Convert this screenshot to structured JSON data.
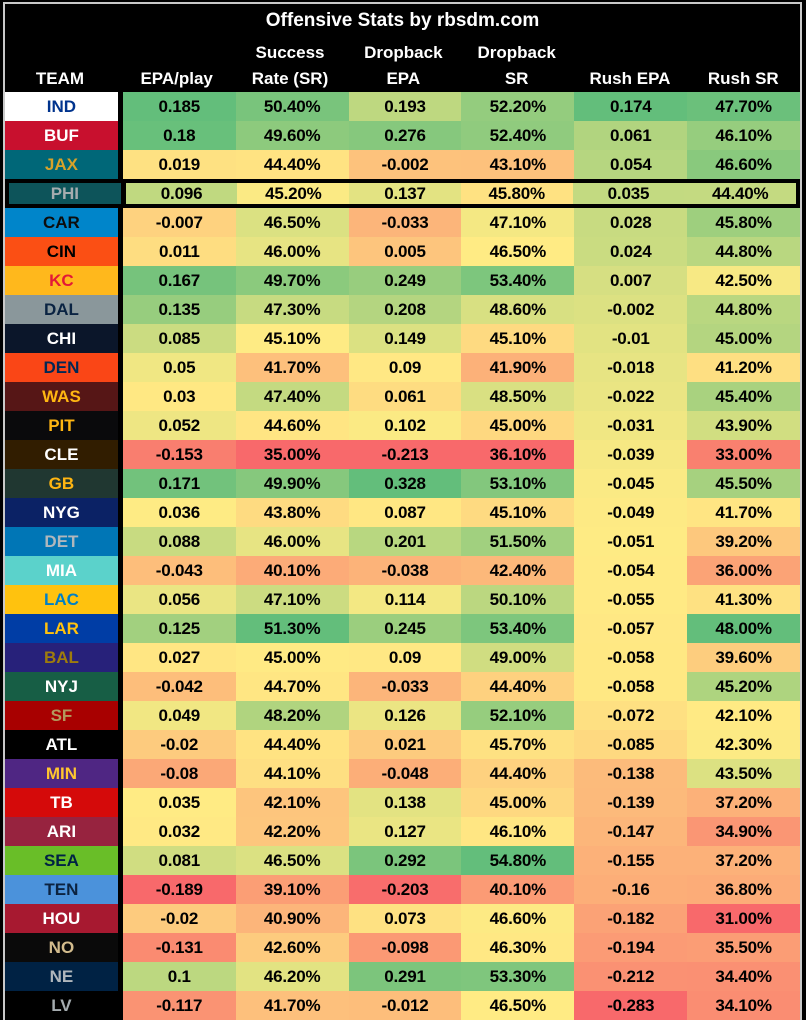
{
  "chart_data": {
    "type": "table",
    "title": "Offensive Stats by rbsdm.com",
    "source": "rbsdm.com",
    "highlighted_team": "PHI",
    "color_scale": {
      "style": "red-yellow-green heatmap per column",
      "min_color": "#F8696B",
      "mid_color": "#FFEB84",
      "max_color": "#63BE7B",
      "midpoint": "column median"
    },
    "columns": [
      {
        "id": "team",
        "label_lines": [
          "",
          "TEAM"
        ]
      },
      {
        "id": "epa-play",
        "label_lines": [
          "",
          "EPA/play"
        ]
      },
      {
        "id": "success-rate",
        "label_lines": [
          "Success",
          "Rate (SR)"
        ]
      },
      {
        "id": "dropback-epa",
        "label_lines": [
          "Dropback",
          "EPA"
        ]
      },
      {
        "id": "dropback-sr",
        "label_lines": [
          "Dropback",
          "SR"
        ]
      },
      {
        "id": "rush-epa",
        "label_lines": [
          "",
          "Rush EPA"
        ]
      },
      {
        "id": "rush-sr",
        "label_lines": [
          "",
          "Rush SR"
        ]
      }
    ],
    "rows": [
      {
        "team": "IND",
        "colors": {
          "bg": "#FFFFFF",
          "text": "#00338D"
        },
        "stats": [
          "0.185",
          "50.40%",
          "0.193",
          "52.20%",
          "0.174",
          "47.70%"
        ]
      },
      {
        "team": "BUF",
        "colors": {
          "bg": "#C8102E",
          "text": "#FFFFFF"
        },
        "stats": [
          "0.18",
          "49.60%",
          "0.276",
          "52.40%",
          "0.061",
          "46.10%"
        ]
      },
      {
        "team": "JAX",
        "colors": {
          "bg": "#006778",
          "text": "#D7A22A"
        },
        "stats": [
          "0.019",
          "44.40%",
          "-0.002",
          "43.10%",
          "0.054",
          "46.60%"
        ]
      },
      {
        "team": "PHI",
        "colors": {
          "bg": "#0D545A",
          "text": "#A5ACAF"
        },
        "stats": [
          "0.096",
          "45.20%",
          "0.137",
          "45.80%",
          "0.035",
          "44.40%"
        ]
      },
      {
        "team": "CAR",
        "colors": {
          "bg": "#0085CA",
          "text": "#0D0D0D"
        },
        "stats": [
          "-0.007",
          "46.50%",
          "-0.033",
          "47.10%",
          "0.028",
          "45.80%"
        ]
      },
      {
        "team": "CIN",
        "colors": {
          "bg": "#FB4F14",
          "text": "#000000"
        },
        "stats": [
          "0.011",
          "46.00%",
          "0.005",
          "46.50%",
          "0.024",
          "44.80%"
        ]
      },
      {
        "team": "KC",
        "colors": {
          "bg": "#FFB81C",
          "text": "#E31837"
        },
        "stats": [
          "0.167",
          "49.70%",
          "0.249",
          "53.40%",
          "0.007",
          "42.50%"
        ]
      },
      {
        "team": "DAL",
        "colors": {
          "bg": "#8A979B",
          "text": "#0A2342"
        },
        "stats": [
          "0.135",
          "47.30%",
          "0.208",
          "48.60%",
          "-0.002",
          "44.80%"
        ]
      },
      {
        "team": "CHI",
        "colors": {
          "bg": "#0B162A",
          "text": "#FFFFFF"
        },
        "stats": [
          "0.085",
          "45.10%",
          "0.149",
          "45.10%",
          "-0.01",
          "45.00%"
        ]
      },
      {
        "team": "DEN",
        "colors": {
          "bg": "#FA4616",
          "text": "#002855"
        },
        "stats": [
          "0.05",
          "41.70%",
          "0.09",
          "41.90%",
          "-0.018",
          "41.20%"
        ]
      },
      {
        "team": "WAS",
        "colors": {
          "bg": "#561616",
          "text": "#FFB612"
        },
        "stats": [
          "0.03",
          "47.40%",
          "0.061",
          "48.50%",
          "-0.022",
          "45.40%"
        ]
      },
      {
        "team": "PIT",
        "colors": {
          "bg": "#0A0A0C",
          "text": "#FFB612"
        },
        "stats": [
          "0.052",
          "44.60%",
          "0.102",
          "45.00%",
          "-0.031",
          "43.90%"
        ]
      },
      {
        "team": "CLE",
        "colors": {
          "bg": "#311D00",
          "text": "#FFFFFF"
        },
        "stats": [
          "-0.153",
          "35.00%",
          "-0.213",
          "36.10%",
          "-0.039",
          "33.00%"
        ]
      },
      {
        "team": "GB",
        "colors": {
          "bg": "#203731",
          "text": "#FFB612"
        },
        "stats": [
          "0.171",
          "49.90%",
          "0.328",
          "53.10%",
          "-0.045",
          "45.50%"
        ]
      },
      {
        "team": "NYG",
        "colors": {
          "bg": "#0B2265",
          "text": "#FFFFFF"
        },
        "stats": [
          "0.036",
          "43.80%",
          "0.087",
          "45.10%",
          "-0.049",
          "41.70%"
        ]
      },
      {
        "team": "DET",
        "colors": {
          "bg": "#0076B6",
          "text": "#B0B7BC"
        },
        "stats": [
          "0.088",
          "46.00%",
          "0.201",
          "51.50%",
          "-0.051",
          "39.20%"
        ]
      },
      {
        "team": "MIA",
        "colors": {
          "bg": "#5BD2CB",
          "text": "#FFFFFF"
        },
        "stats": [
          "-0.043",
          "40.10%",
          "-0.038",
          "42.40%",
          "-0.054",
          "36.00%"
        ]
      },
      {
        "team": "LAC",
        "colors": {
          "bg": "#FFC20E",
          "text": "#0080C6"
        },
        "stats": [
          "0.056",
          "47.10%",
          "0.114",
          "50.10%",
          "-0.055",
          "41.30%"
        ]
      },
      {
        "team": "LAR",
        "colors": {
          "bg": "#003DA5",
          "text": "#FFC20E"
        },
        "stats": [
          "0.125",
          "51.30%",
          "0.245",
          "53.40%",
          "-0.057",
          "48.00%"
        ]
      },
      {
        "team": "BAL",
        "colors": {
          "bg": "#27217A",
          "text": "#9E7C0C"
        },
        "stats": [
          "0.027",
          "45.00%",
          "0.09",
          "49.00%",
          "-0.058",
          "39.60%"
        ]
      },
      {
        "team": "NYJ",
        "colors": {
          "bg": "#175E45",
          "text": "#FFFFFF"
        },
        "stats": [
          "-0.042",
          "44.70%",
          "-0.033",
          "44.40%",
          "-0.058",
          "45.20%"
        ]
      },
      {
        "team": "SF",
        "colors": {
          "bg": "#A80000",
          "text": "#B3995D"
        },
        "stats": [
          "0.049",
          "48.20%",
          "0.126",
          "52.10%",
          "-0.072",
          "42.10%"
        ]
      },
      {
        "team": "ATL",
        "colors": {
          "bg": "#000000",
          "text": "#FFFFFF"
        },
        "stats": [
          "-0.02",
          "44.40%",
          "0.021",
          "45.70%",
          "-0.085",
          "42.30%"
        ]
      },
      {
        "team": "MIN",
        "colors": {
          "bg": "#4F2683",
          "text": "#FFC62F"
        },
        "stats": [
          "-0.08",
          "44.10%",
          "-0.048",
          "44.40%",
          "-0.138",
          "43.50%"
        ]
      },
      {
        "team": "TB",
        "colors": {
          "bg": "#D50A0A",
          "text": "#FFFFFF"
        },
        "stats": [
          "0.035",
          "42.10%",
          "0.138",
          "45.00%",
          "-0.139",
          "37.20%"
        ]
      },
      {
        "team": "ARI",
        "colors": {
          "bg": "#97233F",
          "text": "#FFFFFF"
        },
        "stats": [
          "0.032",
          "42.20%",
          "0.127",
          "46.10%",
          "-0.147",
          "34.90%"
        ]
      },
      {
        "team": "SEA",
        "colors": {
          "bg": "#69BE28",
          "text": "#002244"
        },
        "stats": [
          "0.081",
          "46.50%",
          "0.292",
          "54.80%",
          "-0.155",
          "37.20%"
        ]
      },
      {
        "team": "TEN",
        "colors": {
          "bg": "#4B92DB",
          "text": "#0C2340"
        },
        "stats": [
          "-0.189",
          "39.10%",
          "-0.203",
          "40.10%",
          "-0.16",
          "36.80%"
        ]
      },
      {
        "team": "HOU",
        "colors": {
          "bg": "#A71930",
          "text": "#FFFFFF"
        },
        "stats": [
          "-0.02",
          "40.90%",
          "0.073",
          "46.60%",
          "-0.182",
          "31.00%"
        ]
      },
      {
        "team": "NO",
        "colors": {
          "bg": "#0A0A0A",
          "text": "#D3BC8D"
        },
        "stats": [
          "-0.131",
          "42.60%",
          "-0.098",
          "46.30%",
          "-0.194",
          "35.50%"
        ]
      },
      {
        "team": "NE",
        "colors": {
          "bg": "#002244",
          "text": "#B0B7BC"
        },
        "stats": [
          "0.1",
          "46.20%",
          "0.291",
          "53.30%",
          "-0.212",
          "34.40%"
        ]
      },
      {
        "team": "LV",
        "colors": {
          "bg": "#000000",
          "text": "#A5ACAF"
        },
        "stats": [
          "-0.117",
          "41.70%",
          "-0.012",
          "46.50%",
          "-0.283",
          "34.10%"
        ]
      }
    ]
  }
}
